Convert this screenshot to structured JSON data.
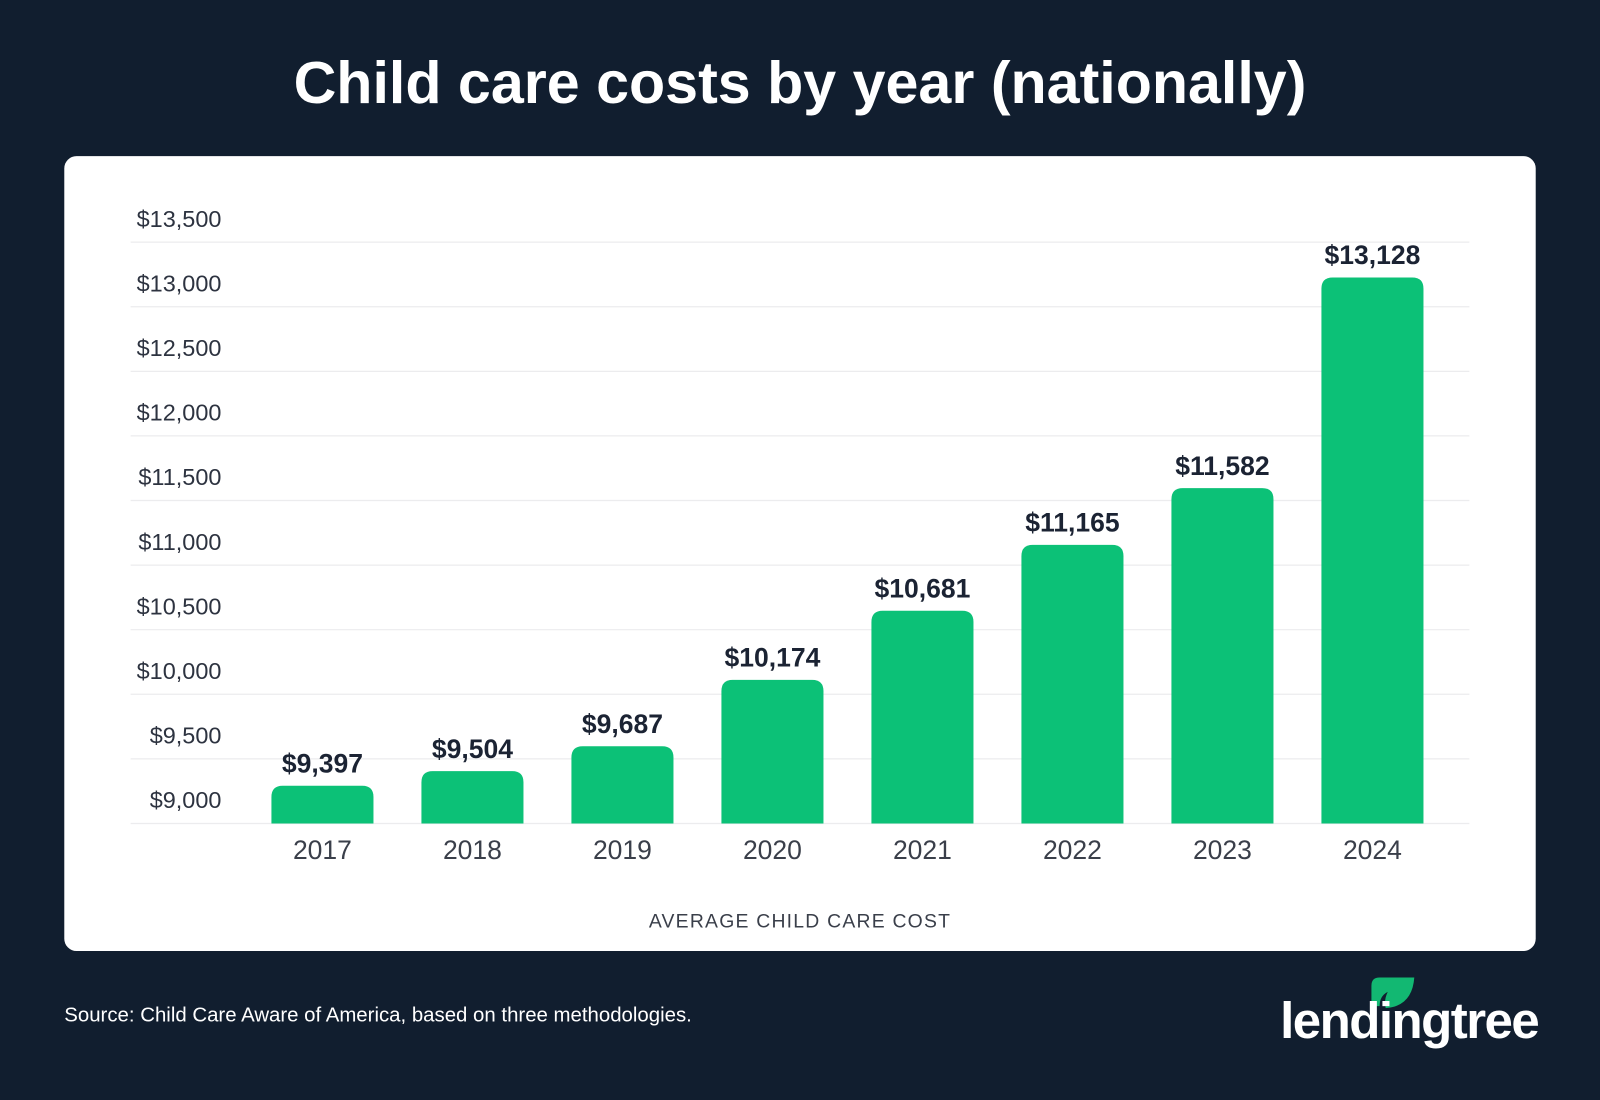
{
  "title": "Child care costs by year (nationally)",
  "source": "Source: Child Care Aware of America, based on three methodologies.",
  "logo": {
    "text": "lendingtree",
    "icon": "leaf-icon"
  },
  "colors": {
    "background": "#111e2f",
    "card": "#ffffff",
    "bar": "#0cc177",
    "text_dark": "#1b2333",
    "axis_text": "#3a3f4a",
    "logo_green": "#12b872"
  },
  "chart_data": {
    "type": "bar",
    "title": "Child care costs by year (nationally)",
    "xlabel": "AVERAGE CHILD CARE COST",
    "ylabel": "",
    "categories": [
      "2017",
      "2018",
      "2019",
      "2020",
      "2021",
      "2022",
      "2023",
      "2024"
    ],
    "values": [
      9397,
      9504,
      9687,
      10174,
      10681,
      11165,
      11582,
      13128
    ],
    "data_labels": [
      "$9,397",
      "$9,504",
      "$9,687",
      "$10,174",
      "$10,681",
      "$11,165",
      "$11,582",
      "$13,128"
    ],
    "yticks": [
      9000,
      9500,
      10000,
      10500,
      11000,
      11500,
      12000,
      12500,
      13000,
      13500
    ],
    "ytick_labels": [
      "$9,000",
      "$9,500",
      "$10,000",
      "$10,500",
      "$11,000",
      "$11,500",
      "$12,000",
      "$12,500",
      "$13,000",
      "$13,500"
    ],
    "ylim": [
      9000,
      13500
    ],
    "grid": true,
    "legend": "none"
  }
}
